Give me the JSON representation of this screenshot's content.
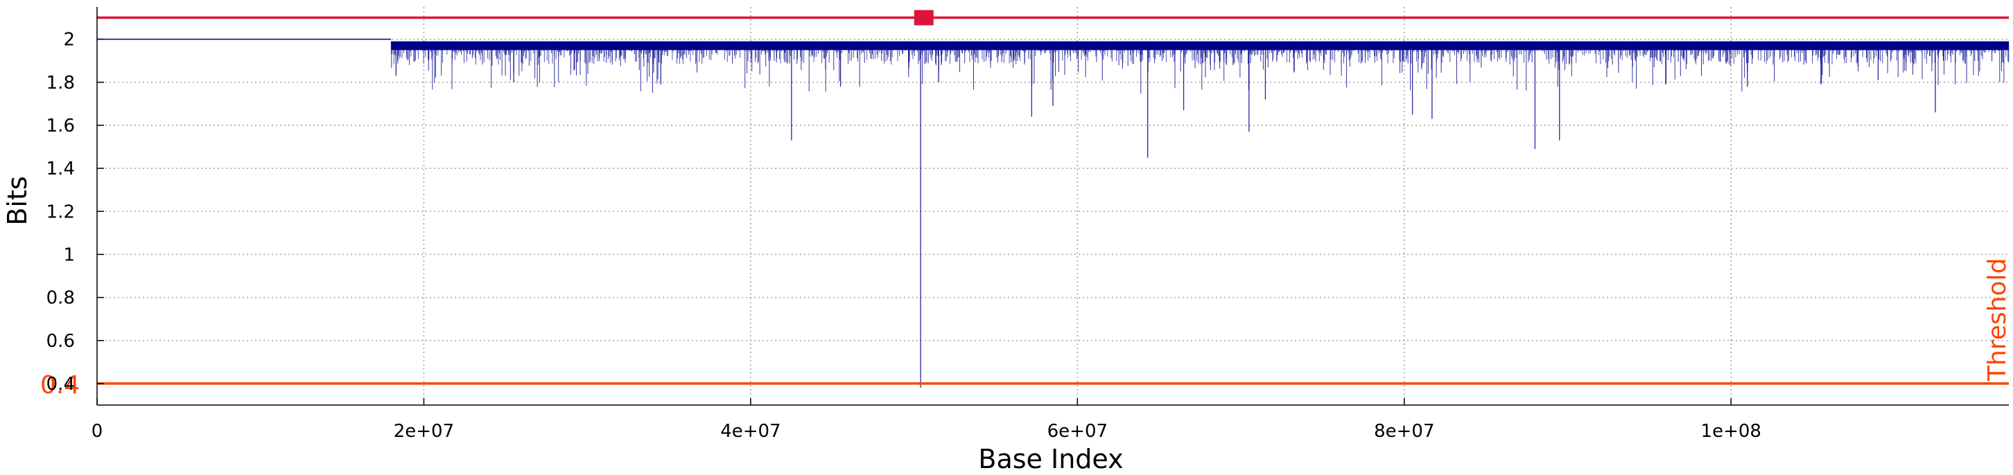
{
  "chart_data": {
    "type": "line",
    "title": "",
    "xlabel": "Base Index",
    "ylabel": "Bits",
    "xlim": [
      0,
      117000000
    ],
    "ylim": [
      0.3,
      2.15
    ],
    "grid": true,
    "x_ticks": [
      {
        "value": 0,
        "label": "0"
      },
      {
        "value": 20000000,
        "label": "2e+07"
      },
      {
        "value": 40000000,
        "label": "4e+07"
      },
      {
        "value": 60000000,
        "label": "6e+07"
      },
      {
        "value": 80000000,
        "label": "8e+07"
      },
      {
        "value": 100000000,
        "label": "1e+08"
      }
    ],
    "y_ticks": [
      {
        "value": 0.4,
        "label": "0.4"
      },
      {
        "value": 0.6,
        "label": "0.6"
      },
      {
        "value": 0.8,
        "label": "0.8"
      },
      {
        "value": 1.0,
        "label": "1"
      },
      {
        "value": 1.2,
        "label": "1.2"
      },
      {
        "value": 1.4,
        "label": "1.4"
      },
      {
        "value": 1.6,
        "label": "1.6"
      },
      {
        "value": 1.8,
        "label": "1.8"
      },
      {
        "value": 2.0,
        "label": "2"
      }
    ],
    "series": [
      {
        "color": "#00008b",
        "flat_segment": {
          "x_start": 0,
          "x_end": 18000000,
          "y": 2.0
        },
        "noise_band": {
          "x_start": 18000000,
          "x_end": 117000000,
          "y_top": 1.99,
          "y_bottom": 1.9
        },
        "spikes": [
          {
            "x": 18300000,
            "y": 1.83
          },
          {
            "x": 25500000,
            "y": 1.8
          },
          {
            "x": 34500000,
            "y": 1.79
          },
          {
            "x": 42500000,
            "y": 1.53
          },
          {
            "x": 45500000,
            "y": 1.78
          },
          {
            "x": 50400000,
            "y": 0.38
          },
          {
            "x": 51500000,
            "y": 1.8
          },
          {
            "x": 57200000,
            "y": 1.64
          },
          {
            "x": 58500000,
            "y": 1.69
          },
          {
            "x": 64300000,
            "y": 1.45
          },
          {
            "x": 66500000,
            "y": 1.67
          },
          {
            "x": 70500000,
            "y": 1.57
          },
          {
            "x": 71500000,
            "y": 1.72
          },
          {
            "x": 80500000,
            "y": 1.65
          },
          {
            "x": 81700000,
            "y": 1.63
          },
          {
            "x": 88000000,
            "y": 1.49
          },
          {
            "x": 89500000,
            "y": 1.53
          },
          {
            "x": 96000000,
            "y": 1.79
          },
          {
            "x": 101000000,
            "y": 1.78
          },
          {
            "x": 105500000,
            "y": 1.79
          },
          {
            "x": 109000000,
            "y": 1.81
          },
          {
            "x": 112500000,
            "y": 1.66
          }
        ]
      }
    ],
    "reference_lines": [
      {
        "y": 2.1,
        "color": "#dc143c",
        "marker_x": 50600000
      },
      {
        "y": 0.4,
        "color": "#ff4500",
        "label": "0.4",
        "side_label": "Threshold"
      }
    ]
  }
}
